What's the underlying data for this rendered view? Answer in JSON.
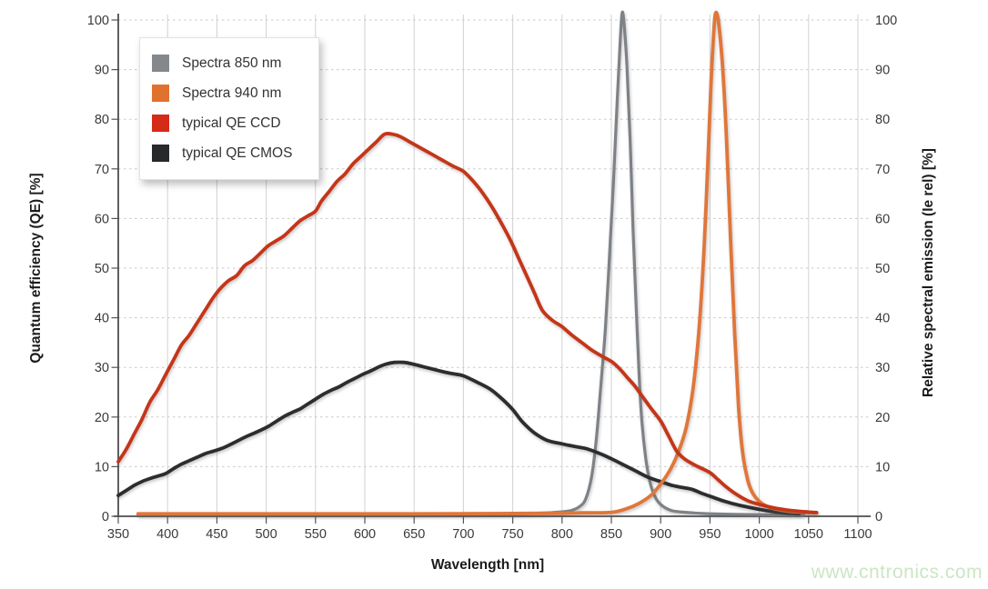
{
  "watermark": "www.cntronics.com",
  "chart_data": {
    "type": "line",
    "title": "",
    "xlabel": "Wavelength [nm]",
    "ylabel_left": "Quantum efficiency (QE) [%]",
    "ylabel_right": "Relative spectral emission (Ie rel) [%]",
    "x_range": [
      350,
      1100
    ],
    "y_range": [
      0,
      100
    ],
    "x_ticks": [
      350,
      400,
      450,
      500,
      550,
      600,
      650,
      700,
      750,
      800,
      850,
      900,
      950,
      1000,
      1050,
      1100
    ],
    "y_ticks": [
      0,
      10,
      20,
      30,
      40,
      50,
      60,
      70,
      80,
      90,
      100
    ],
    "grid": {
      "vertical": "solid",
      "horizontal": "dashed"
    },
    "legend_position": "top-left",
    "colors": {
      "axis": "#4d4d4d",
      "grid": "#d2d2d2",
      "grid_dashed": "#c9c9c9",
      "tick_text": "#3a3a3a",
      "watermark_green": "#cbe6c3"
    },
    "series": [
      {
        "name": "Spectra 850 nm",
        "color": "#7e8286",
        "swatch": "#85888b",
        "width": 3.2,
        "points": [
          [
            370,
            0.4
          ],
          [
            450,
            0.4
          ],
          [
            550,
            0.4
          ],
          [
            650,
            0.4
          ],
          [
            720,
            0.45
          ],
          [
            760,
            0.5
          ],
          [
            785,
            0.7
          ],
          [
            800,
            0.9
          ],
          [
            810,
            1.2
          ],
          [
            818,
            2
          ],
          [
            824,
            3.5
          ],
          [
            830,
            8
          ],
          [
            835,
            16
          ],
          [
            840,
            28
          ],
          [
            844,
            38
          ],
          [
            848,
            52
          ],
          [
            852,
            67
          ],
          [
            856,
            84
          ],
          [
            859,
            96
          ],
          [
            861,
            101.5
          ],
          [
            863,
            99
          ],
          [
            866,
            90
          ],
          [
            869,
            76
          ],
          [
            872,
            58
          ],
          [
            875,
            43
          ],
          [
            878,
            29
          ],
          [
            881,
            19
          ],
          [
            885,
            11.5
          ],
          [
            889,
            7
          ],
          [
            893,
            4.5
          ],
          [
            898,
            2.8
          ],
          [
            904,
            1.8
          ],
          [
            912,
            1.1
          ],
          [
            925,
            0.8
          ],
          [
            945,
            0.55
          ],
          [
            975,
            0.4
          ],
          [
            1010,
            0.3
          ],
          [
            1045,
            0.25
          ]
        ]
      },
      {
        "name": "Spectra 940 nm",
        "color": "#e0763a",
        "swatch": "#e0722e",
        "width": 3.8,
        "points": [
          [
            370,
            0.5
          ],
          [
            450,
            0.5
          ],
          [
            550,
            0.5
          ],
          [
            650,
            0.5
          ],
          [
            730,
            0.55
          ],
          [
            790,
            0.6
          ],
          [
            820,
            0.7
          ],
          [
            850,
            0.8
          ],
          [
            865,
            1.5
          ],
          [
            878,
            2.6
          ],
          [
            890,
            4.2
          ],
          [
            900,
            6.5
          ],
          [
            910,
            9.5
          ],
          [
            918,
            13
          ],
          [
            926,
            18
          ],
          [
            933,
            26
          ],
          [
            939,
            38
          ],
          [
            944,
            54
          ],
          [
            948,
            72
          ],
          [
            951,
            87
          ],
          [
            954,
            98
          ],
          [
            956,
            101.5
          ],
          [
            959,
            99
          ],
          [
            963,
            90
          ],
          [
            967,
            75
          ],
          [
            971,
            55
          ],
          [
            975,
            37
          ],
          [
            979,
            22
          ],
          [
            983,
            13
          ],
          [
            988,
            7.5
          ],
          [
            993,
            4.8
          ],
          [
            1000,
            3
          ],
          [
            1008,
            2
          ],
          [
            1018,
            1.4
          ],
          [
            1030,
            1
          ],
          [
            1045,
            0.8
          ],
          [
            1058,
            0.7
          ]
        ]
      },
      {
        "name": "typical QE CCD",
        "color": "#c53518",
        "swatch": "#d62a18",
        "width": 3.8,
        "points": [
          [
            350,
            11
          ],
          [
            358,
            13.5
          ],
          [
            366,
            16.5
          ],
          [
            374,
            19.5
          ],
          [
            382,
            23
          ],
          [
            390,
            25.5
          ],
          [
            398,
            28.5
          ],
          [
            406,
            31.5
          ],
          [
            414,
            34.5
          ],
          [
            422,
            36.5
          ],
          [
            430,
            39
          ],
          [
            438,
            41.5
          ],
          [
            446,
            44
          ],
          [
            454,
            46
          ],
          [
            462,
            47.5
          ],
          [
            470,
            48.5
          ],
          [
            478,
            50.5
          ],
          [
            486,
            51.5
          ],
          [
            494,
            53
          ],
          [
            502,
            54.5
          ],
          [
            510,
            55.5
          ],
          [
            518,
            56.5
          ],
          [
            526,
            58
          ],
          [
            534,
            59.5
          ],
          [
            542,
            60.5
          ],
          [
            550,
            61.5
          ],
          [
            556,
            63.5
          ],
          [
            564,
            65.5
          ],
          [
            572,
            67.5
          ],
          [
            580,
            69
          ],
          [
            588,
            71
          ],
          [
            596,
            72.5
          ],
          [
            604,
            74
          ],
          [
            612,
            75.5
          ],
          [
            620,
            77
          ],
          [
            628,
            77
          ],
          [
            636,
            76.5
          ],
          [
            645,
            75.5
          ],
          [
            654,
            74.5
          ],
          [
            663,
            73.5
          ],
          [
            672,
            72.5
          ],
          [
            681,
            71.5
          ],
          [
            690,
            70.5
          ],
          [
            700,
            69.5
          ],
          [
            710,
            67.5
          ],
          [
            720,
            65
          ],
          [
            730,
            62
          ],
          [
            740,
            58.5
          ],
          [
            748,
            55.5
          ],
          [
            756,
            52
          ],
          [
            764,
            48.5
          ],
          [
            772,
            45
          ],
          [
            780,
            41.5
          ],
          [
            790,
            39.5
          ],
          [
            800,
            38.2
          ],
          [
            810,
            36.5
          ],
          [
            820,
            35
          ],
          [
            830,
            33.5
          ],
          [
            840,
            32.3
          ],
          [
            850,
            31.2
          ],
          [
            858,
            29.8
          ],
          [
            866,
            28
          ],
          [
            874,
            26.2
          ],
          [
            882,
            24
          ],
          [
            890,
            21.8
          ],
          [
            900,
            19.2
          ],
          [
            908,
            16.2
          ],
          [
            916,
            13.2
          ],
          [
            924,
            11.6
          ],
          [
            932,
            10.6
          ],
          [
            940,
            9.8
          ],
          [
            950,
            8.8
          ],
          [
            958,
            7.4
          ],
          [
            966,
            6
          ],
          [
            974,
            4.8
          ],
          [
            982,
            3.8
          ],
          [
            990,
            3
          ],
          [
            1000,
            2.4
          ],
          [
            1010,
            1.9
          ],
          [
            1020,
            1.5
          ],
          [
            1030,
            1.2
          ],
          [
            1040,
            1
          ],
          [
            1050,
            0.85
          ],
          [
            1058,
            0.75
          ]
        ]
      },
      {
        "name": "typical QE CMOS",
        "color": "#2b2d2f",
        "swatch": "#28292b",
        "width": 3.8,
        "points": [
          [
            350,
            4.2
          ],
          [
            358,
            5.2
          ],
          [
            366,
            6.2
          ],
          [
            374,
            7
          ],
          [
            382,
            7.6
          ],
          [
            390,
            8.1
          ],
          [
            398,
            8.6
          ],
          [
            406,
            9.6
          ],
          [
            414,
            10.5
          ],
          [
            422,
            11.2
          ],
          [
            430,
            11.9
          ],
          [
            438,
            12.6
          ],
          [
            446,
            13.1
          ],
          [
            454,
            13.6
          ],
          [
            462,
            14.3
          ],
          [
            470,
            15.1
          ],
          [
            478,
            15.9
          ],
          [
            486,
            16.6
          ],
          [
            494,
            17.3
          ],
          [
            502,
            18.1
          ],
          [
            510,
            19.1
          ],
          [
            518,
            20.1
          ],
          [
            526,
            20.9
          ],
          [
            534,
            21.6
          ],
          [
            542,
            22.6
          ],
          [
            550,
            23.6
          ],
          [
            558,
            24.6
          ],
          [
            566,
            25.4
          ],
          [
            574,
            26.1
          ],
          [
            582,
            27
          ],
          [
            590,
            27.8
          ],
          [
            598,
            28.6
          ],
          [
            606,
            29.3
          ],
          [
            614,
            30.1
          ],
          [
            622,
            30.7
          ],
          [
            630,
            31
          ],
          [
            640,
            31
          ],
          [
            650,
            30.6
          ],
          [
            660,
            30.1
          ],
          [
            670,
            29.6
          ],
          [
            680,
            29.1
          ],
          [
            690,
            28.7
          ],
          [
            700,
            28.3
          ],
          [
            714,
            27
          ],
          [
            728,
            25.5
          ],
          [
            740,
            23.5
          ],
          [
            750,
            21.5
          ],
          [
            760,
            19
          ],
          [
            772,
            16.8
          ],
          [
            785,
            15.3
          ],
          [
            800,
            14.6
          ],
          [
            812,
            14.1
          ],
          [
            825,
            13.6
          ],
          [
            840,
            12.5
          ],
          [
            850,
            11.6
          ],
          [
            862,
            10.4
          ],
          [
            875,
            9.1
          ],
          [
            888,
            7.8
          ],
          [
            900,
            7
          ],
          [
            912,
            6.2
          ],
          [
            922,
            5.8
          ],
          [
            932,
            5.4
          ],
          [
            942,
            4.6
          ],
          [
            952,
            3.9
          ],
          [
            965,
            3
          ],
          [
            978,
            2.3
          ],
          [
            990,
            1.8
          ],
          [
            1000,
            1.4
          ],
          [
            1012,
            1
          ],
          [
            1025,
            0.7
          ],
          [
            1040,
            0.5
          ]
        ]
      }
    ]
  }
}
